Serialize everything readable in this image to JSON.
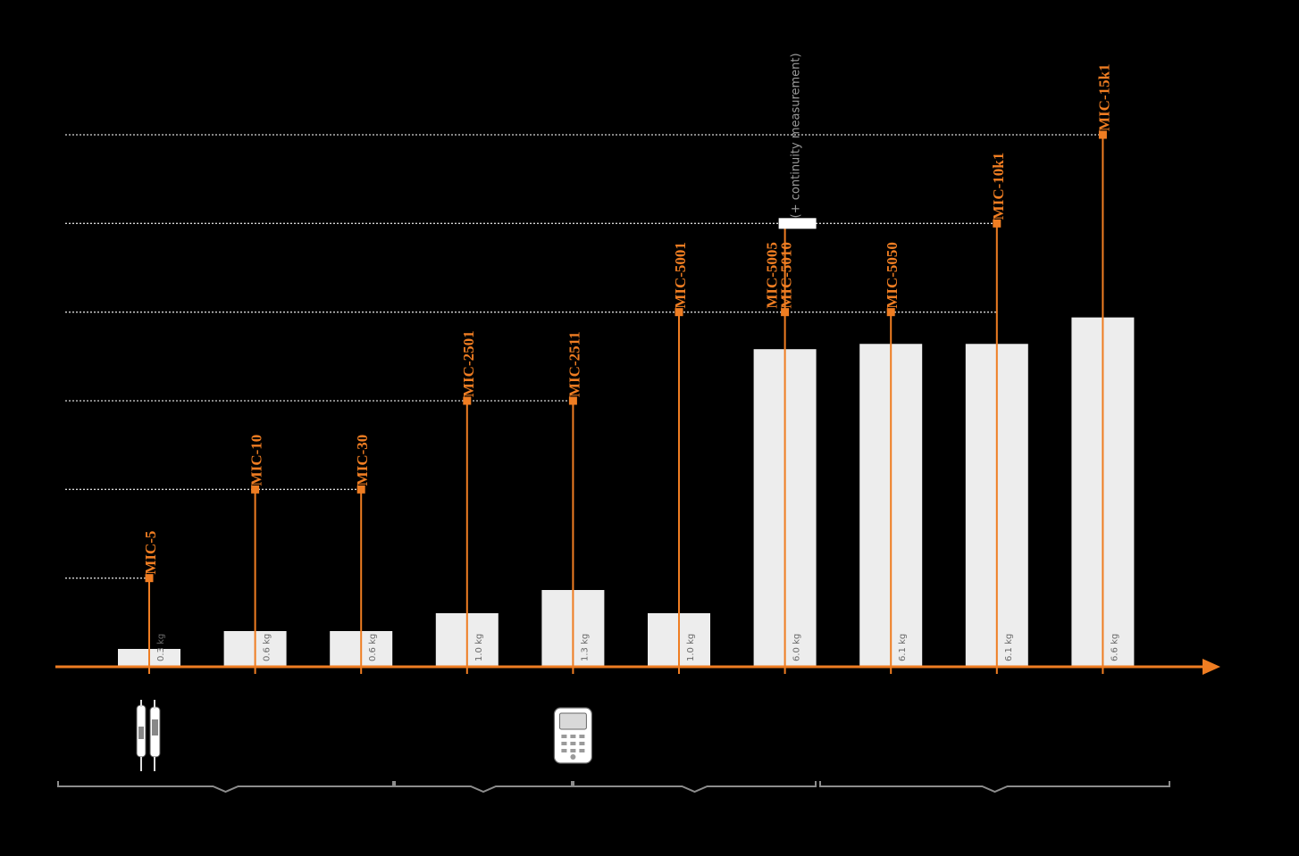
{
  "chart_data": {
    "type": "bar",
    "categories": [
      "MIC-5",
      "MIC-10",
      "MIC-30",
      "MIC-2501",
      "MIC-2511",
      "MIC-5001",
      "MIC-5005 MIC-5010",
      "MIC-5050",
      "MIC-10k1",
      "MIC-15k1"
    ],
    "series": [
      {
        "values": [
          0.3,
          0.6,
          0.6,
          1.0,
          1.3,
          1.0,
          6.0,
          6.1,
          6.1,
          6.6
        ],
        "value_labels": [
          "0.3 kg",
          "0.6 kg",
          "0.6 kg",
          "1.0 kg",
          "1.3 kg",
          "1.0 kg",
          "6.0 kg",
          "6.1 kg",
          "6.1 kg",
          "6.6 kg"
        ]
      }
    ],
    "ylim": [
      0,
      7
    ],
    "grid": "dotted horizontal reference lines",
    "legend": "none"
  },
  "models": [
    {
      "labels": [
        "MIC-5"
      ],
      "level": 1
    },
    {
      "labels": [
        "MIC-10"
      ],
      "level": 2
    },
    {
      "labels": [
        "MIC-30"
      ],
      "level": 2
    },
    {
      "labels": [
        "MIC-2501"
      ],
      "level": 3
    },
    {
      "labels": [
        "MIC-2511"
      ],
      "level": 3
    },
    {
      "labels": [
        "MIC-5001"
      ],
      "level": 4
    },
    {
      "labels": [
        "MIC-5005",
        "MIC-5010"
      ],
      "level": 4,
      "extra_level": 5,
      "note": "(+ continuity measurement)"
    },
    {
      "labels": [
        "MIC-5050"
      ],
      "level": 4
    },
    {
      "labels": [
        "MIC-10k1"
      ],
      "level": 5
    },
    {
      "labels": [
        "MIC-15k1"
      ],
      "level": 6
    }
  ],
  "levels": 6,
  "groups": [
    {
      "from": 0,
      "to": 2
    },
    {
      "from": 3,
      "to": 4
    },
    {
      "from": 5,
      "to": 6
    },
    {
      "from": 7,
      "to": 9
    }
  ],
  "product_icons": [
    {
      "name": "voltage-tester-icon",
      "under": 0
    },
    {
      "name": "handheld-meter-icon",
      "under": 4
    }
  ],
  "colors": {
    "background": "#000000",
    "accent": "#ef7d22",
    "bar": "#ededed",
    "grid": "#d6d6d6",
    "bracket": "#8c8c8c"
  }
}
